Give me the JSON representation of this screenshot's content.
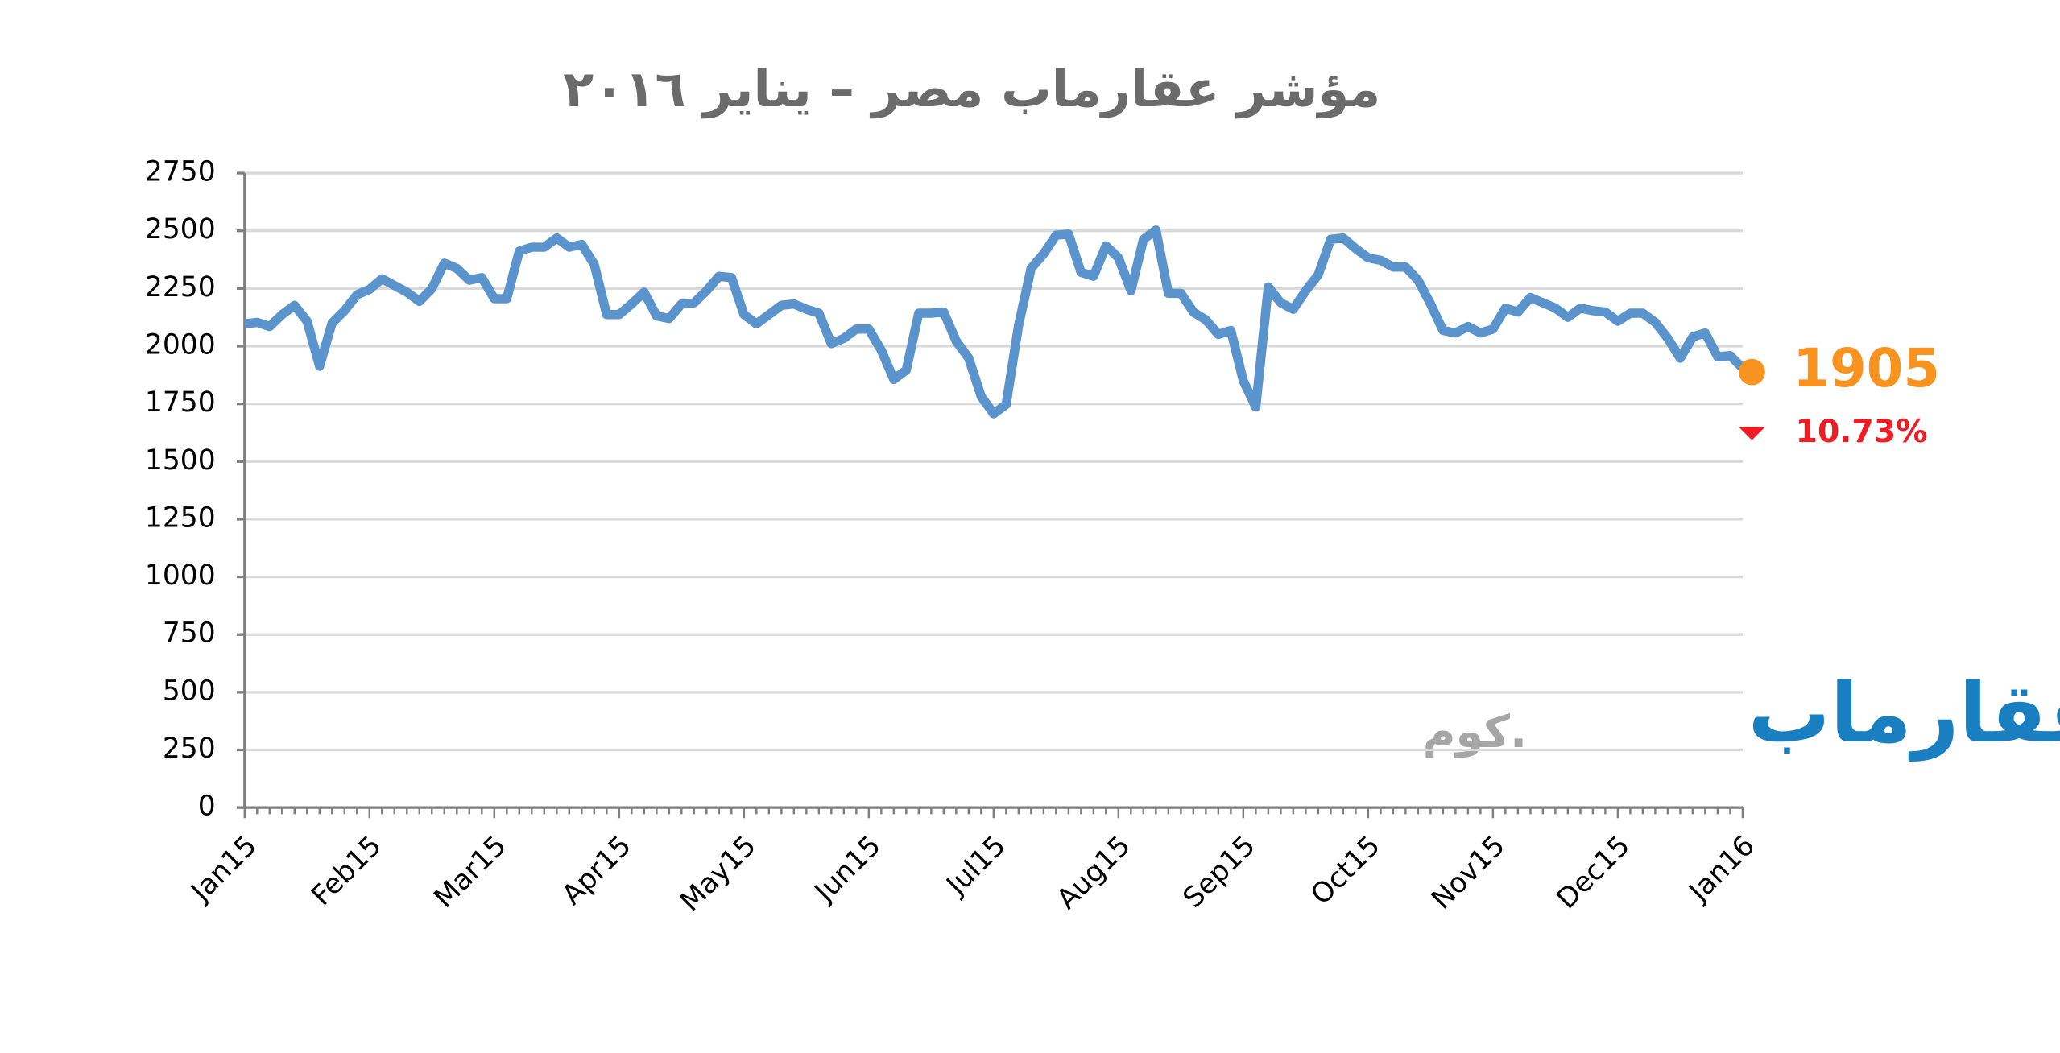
{
  "chart_data": {
    "type": "line",
    "title": "مؤشر عقارماب مصر – يناير ٢٠١٦",
    "categories": [
      "Jan15",
      null,
      null,
      null,
      null,
      null,
      null,
      null,
      null,
      null,
      "Feb15",
      null,
      null,
      null,
      null,
      null,
      null,
      null,
      null,
      null,
      "Mar15",
      null,
      null,
      null,
      null,
      null,
      null,
      null,
      null,
      null,
      "Apr15",
      null,
      null,
      null,
      null,
      null,
      null,
      null,
      null,
      null,
      "May15",
      null,
      null,
      null,
      null,
      null,
      null,
      null,
      null,
      null,
      "Jun15",
      null,
      null,
      null,
      null,
      null,
      null,
      null,
      null,
      null,
      "Jul15",
      null,
      null,
      null,
      null,
      null,
      null,
      null,
      null,
      null,
      "Aug15",
      null,
      null,
      null,
      null,
      null,
      null,
      null,
      null,
      null,
      "Sep15",
      null,
      null,
      null,
      null,
      null,
      null,
      null,
      null,
      null,
      "Oct15",
      null,
      null,
      null,
      null,
      null,
      null,
      null,
      null,
      null,
      "Nov15",
      null,
      null,
      null,
      null,
      null,
      null,
      null,
      null,
      null,
      "Dec15",
      null,
      null,
      null,
      null,
      null,
      null,
      null,
      null,
      null,
      "Jan16"
    ],
    "series": [
      {
        "color": "#5b94cd",
        "values": [
          2097,
          2103,
          2085,
          2137,
          2177,
          2108,
          1913,
          2100,
          2154,
          2223,
          2246,
          2292,
          2263,
          2234,
          2194,
          2250,
          2360,
          2337,
          2286,
          2297,
          2206,
          2206,
          2412,
          2429,
          2429,
          2469,
          2429,
          2441,
          2355,
          2137,
          2137,
          2183,
          2234,
          2131,
          2120,
          2183,
          2188,
          2240,
          2303,
          2297,
          2137,
          2097,
          2137,
          2177,
          2183,
          2160,
          2143,
          2011,
          2034,
          2074,
          2074,
          1982,
          1856,
          1896,
          2143,
          2143,
          2148,
          2022,
          1948,
          1782,
          1707,
          1747,
          2091,
          2337,
          2400,
          2481,
          2486,
          2320,
          2303,
          2435,
          2383,
          2240,
          2463,
          2503,
          2229,
          2229,
          2148,
          2114,
          2051,
          2068,
          1850,
          1736,
          2257,
          2188,
          2160,
          2240,
          2309,
          2463,
          2469,
          2423,
          2383,
          2372,
          2343,
          2343,
          2286,
          2183,
          2068,
          2057,
          2085,
          2057,
          2074,
          2165,
          2148,
          2211,
          2188,
          2165,
          2125,
          2165,
          2154,
          2148,
          2108,
          2143,
          2143,
          2103,
          2034,
          1948,
          2040,
          2057,
          1954,
          1959,
          1905
        ]
      }
    ],
    "ylim": [
      0,
      2750
    ],
    "yticks": [
      0,
      250,
      500,
      750,
      1000,
      1250,
      1500,
      1750,
      2000,
      2250,
      2500,
      2750
    ],
    "grid": true,
    "last_point_color": "#f7931e",
    "change": {
      "text": "10.73%",
      "color": "#ee1c24"
    },
    "logo": {
      "name": "عقارماب",
      "suffix": ".كوم"
    }
  }
}
